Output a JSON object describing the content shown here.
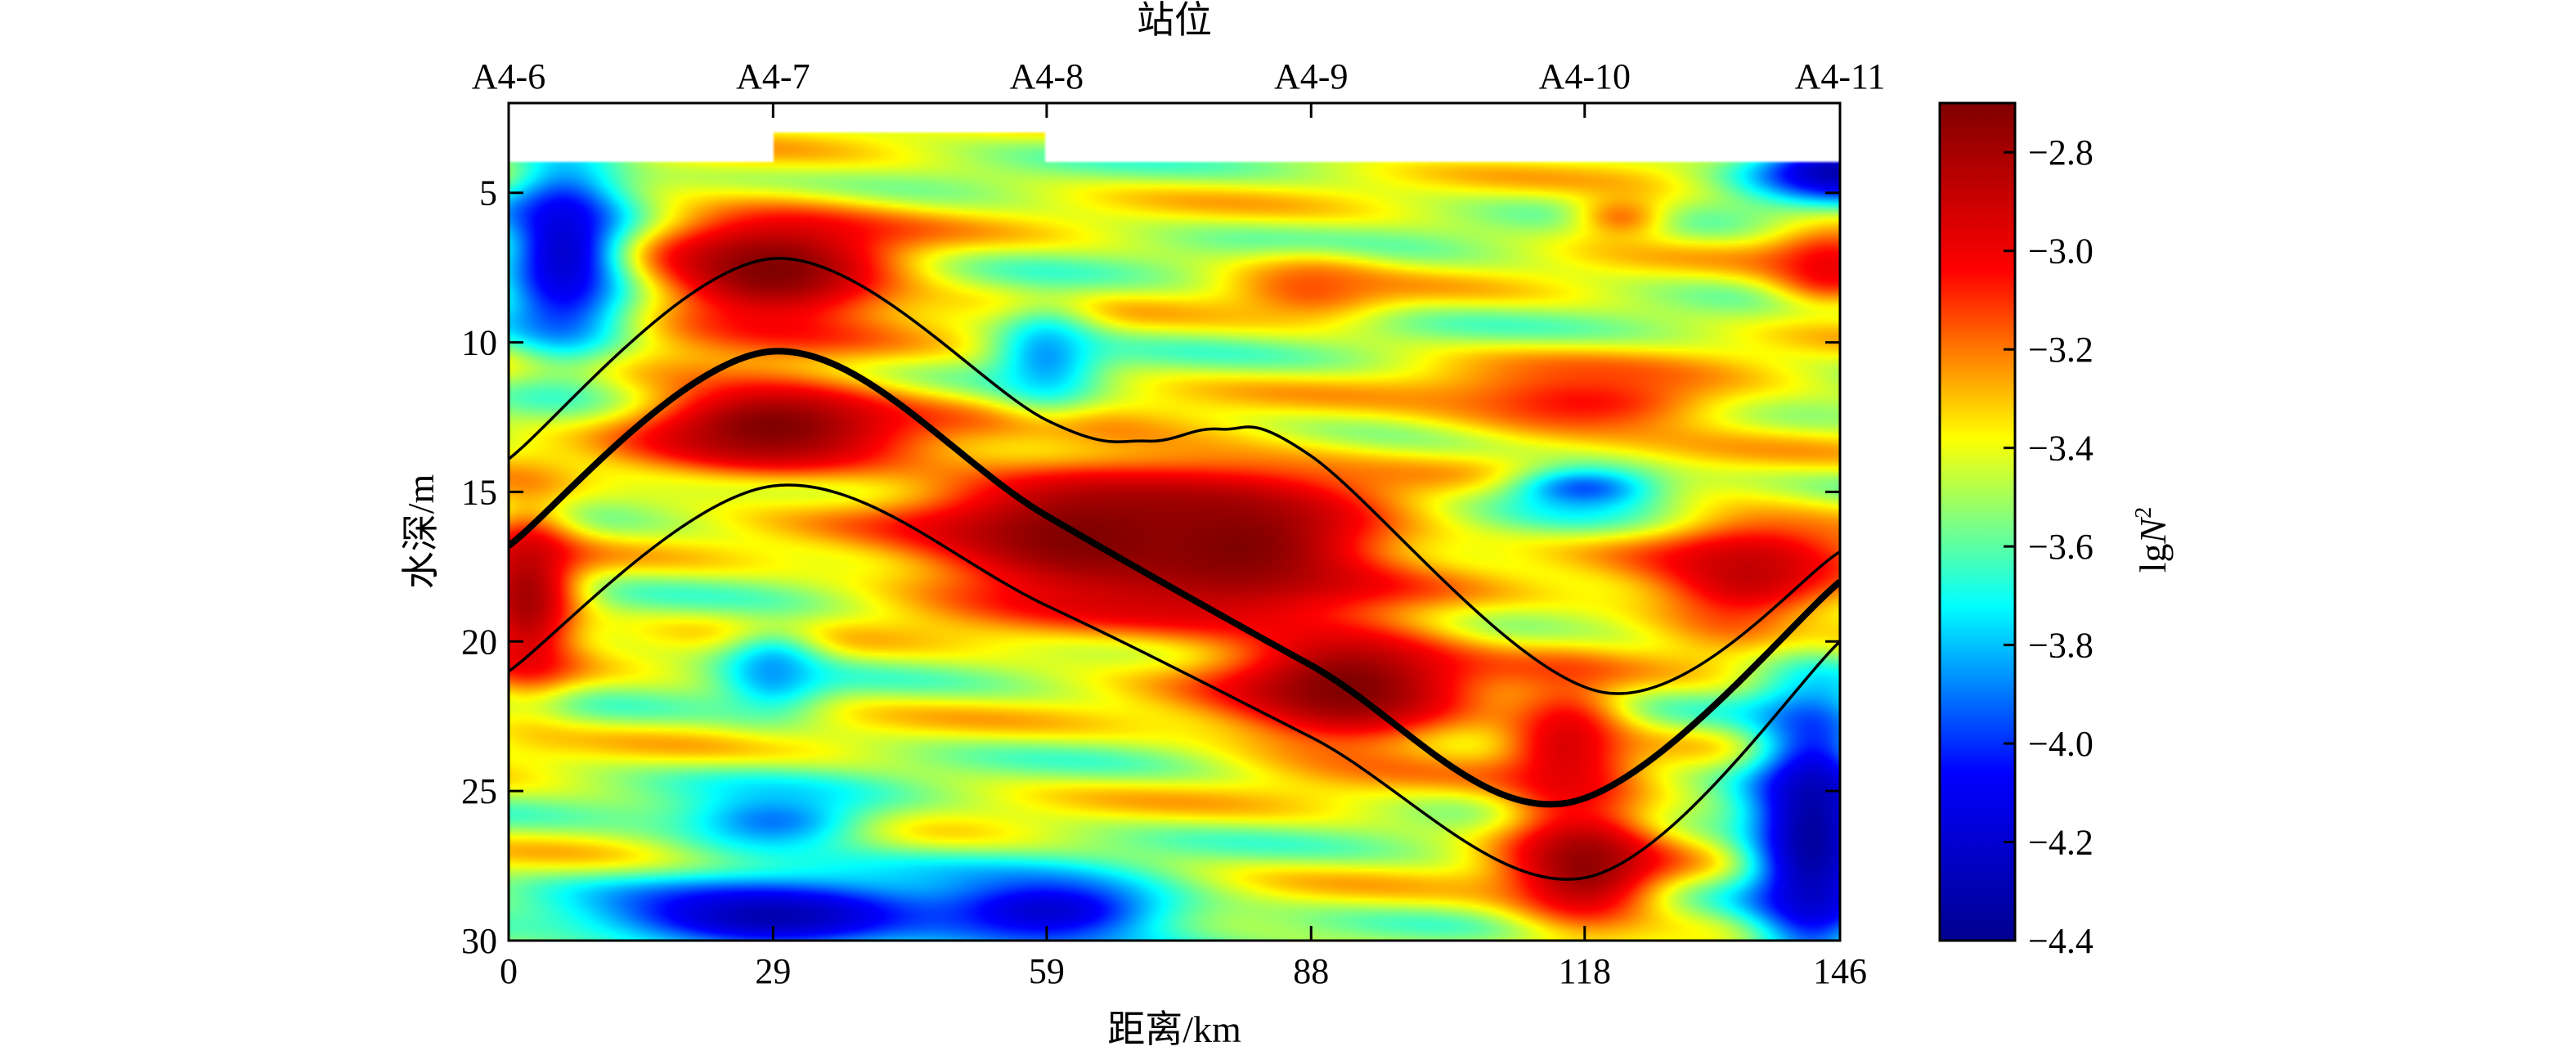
{
  "chart_data": {
    "type": "heatmap",
    "title": "",
    "top_axis": {
      "label": "站位",
      "stations": [
        {
          "name": "A4-6",
          "km": 0
        },
        {
          "name": "A4-7",
          "km": 29
        },
        {
          "name": "A4-8",
          "km": 59
        },
        {
          "name": "A4-9",
          "km": 88
        },
        {
          "name": "A4-10",
          "km": 118
        },
        {
          "name": "A4-11",
          "km": 146
        }
      ]
    },
    "xlabel": "距离/km",
    "xlim": [
      0,
      146
    ],
    "xticks": [
      0,
      29,
      59,
      88,
      118,
      146
    ],
    "xtick_labels": [
      "0",
      "29",
      "59",
      "88",
      "118",
      "146"
    ],
    "ylabel": "水深/m",
    "ylim": [
      2,
      30
    ],
    "y_inverted": true,
    "yticks": [
      5,
      10,
      15,
      20,
      25,
      30
    ],
    "ytick_labels": [
      "5",
      "10",
      "15",
      "20",
      "25",
      "30"
    ],
    "colorbar": {
      "label": "lgN²",
      "label_base": "lg",
      "label_var": "N",
      "label_sup": "2",
      "range": [
        -4.4,
        -2.7
      ],
      "ticks": [
        -2.8,
        -3.0,
        -3.2,
        -3.4,
        -3.6,
        -3.8,
        -4.0,
        -4.2,
        -4.4
      ],
      "tick_labels": [
        "−2.8",
        "−3.0",
        "−3.2",
        "−3.4",
        "−3.6",
        "−3.8",
        "−4.0",
        "−4.2",
        "−4.4"
      ],
      "colormap": "jet",
      "stops": [
        "#00008f",
        "#0000ff",
        "#00ffff",
        "#ffff00",
        "#ff0000",
        "#800000"
      ]
    },
    "data_top_depth_m": 4,
    "extra_data_segment": {
      "x_range_km": [
        29,
        59
      ],
      "top_depth_m": 3
    },
    "field_blobs": [
      {
        "x": 29,
        "y": 7.6,
        "sx": 10,
        "sy": 1.5,
        "v": -2.7
      },
      {
        "x": 29,
        "y": 12.8,
        "sx": 11,
        "sy": 1.2,
        "v": -2.7
      },
      {
        "x": 2,
        "y": 18.5,
        "sx": 4,
        "sy": 2.2,
        "v": -2.8
      },
      {
        "x": 63,
        "y": 16.5,
        "sx": 14,
        "sy": 1.8,
        "v": -2.7
      },
      {
        "x": 80,
        "y": 16.8,
        "sx": 12,
        "sy": 1.8,
        "v": -2.7
      },
      {
        "x": 92,
        "y": 21.5,
        "sx": 10,
        "sy": 1.6,
        "v": -2.7
      },
      {
        "x": 116,
        "y": 23.5,
        "sx": 5,
        "sy": 1.8,
        "v": -2.95
      },
      {
        "x": 118,
        "y": 27.5,
        "sx": 6,
        "sy": 1.5,
        "v": -2.75
      },
      {
        "x": 137,
        "y": 17.8,
        "sx": 9,
        "sy": 1.5,
        "v": -2.85
      },
      {
        "x": 118,
        "y": 12.0,
        "sx": 12,
        "sy": 1.0,
        "v": -3.05
      },
      {
        "x": 145,
        "y": 7.5,
        "sx": 5,
        "sy": 1.0,
        "v": -3.0
      },
      {
        "x": 88,
        "y": 8.2,
        "sx": 6,
        "sy": 0.8,
        "v": -3.15
      },
      {
        "x": 122,
        "y": 5.8,
        "sx": 4,
        "sy": 0.7,
        "v": -3.2
      },
      {
        "x": 6,
        "y": 7.0,
        "sx": 5,
        "sy": 2.5,
        "v": -4.2
      },
      {
        "x": 146,
        "y": 4.3,
        "sx": 7,
        "sy": 0.7,
        "v": -4.3
      },
      {
        "x": 29,
        "y": 29.2,
        "sx": 14,
        "sy": 0.9,
        "v": -4.3
      },
      {
        "x": 59,
        "y": 29.0,
        "sx": 10,
        "sy": 0.9,
        "v": -4.2
      },
      {
        "x": 143,
        "y": 26.5,
        "sx": 5,
        "sy": 3.5,
        "v": -4.35
      },
      {
        "x": 59,
        "y": 10.5,
        "sx": 4,
        "sy": 1.2,
        "v": -3.85
      },
      {
        "x": 29,
        "y": 21.0,
        "sx": 4,
        "sy": 1.0,
        "v": -3.85
      },
      {
        "x": 29,
        "y": 26.0,
        "sx": 8,
        "sy": 0.9,
        "v": -3.9
      },
      {
        "x": 118,
        "y": 14.9,
        "sx": 6,
        "sy": 0.6,
        "v": -3.95
      }
    ],
    "field_background": -3.45,
    "lines": [
      {
        "style": "thick",
        "points": [
          [
            0,
            16.8
          ],
          [
            29,
            10.3
          ],
          [
            59,
            15.8
          ],
          [
            88,
            20.8
          ],
          [
            116,
            25.4
          ],
          [
            146,
            18.0
          ]
        ]
      },
      {
        "style": "thin",
        "points": [
          [
            0,
            13.9
          ],
          [
            29,
            7.2
          ],
          [
            59,
            12.6
          ],
          [
            70,
            13.3
          ],
          [
            78,
            12.9
          ],
          [
            88,
            13.8
          ],
          [
            120,
            21.7
          ],
          [
            146,
            17.0
          ]
        ]
      },
      {
        "style": "thin",
        "points": [
          [
            0,
            21.0
          ],
          [
            29,
            14.8
          ],
          [
            59,
            18.8
          ],
          [
            88,
            23.2
          ],
          [
            118,
            27.9
          ],
          [
            146,
            20.0
          ]
        ]
      }
    ]
  }
}
